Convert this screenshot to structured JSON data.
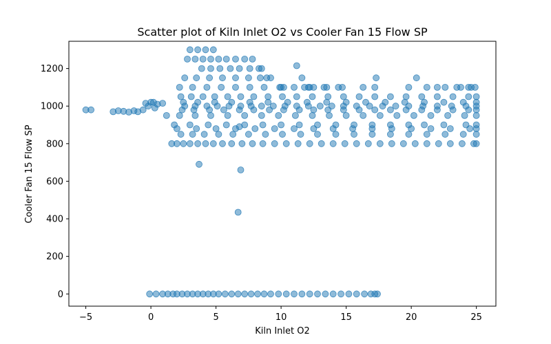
{
  "chart_data": {
    "type": "scatter",
    "title": "Scatter plot of Kiln Inlet O2 vs Cooler Fan 15 Flow SP",
    "xlabel": "Kiln Inlet O2",
    "ylabel": "Cooler Fan 15 Flow SP",
    "xlim": [
      -6.3,
      26.5
    ],
    "ylim": [
      -65,
      1345
    ],
    "xticks": [
      -5,
      0,
      5,
      10,
      15,
      20,
      25
    ],
    "yticks": [
      0,
      200,
      400,
      600,
      800,
      1000,
      1200
    ],
    "grid": false,
    "point_color": "#1f77b4",
    "point_opacity": 0.5,
    "series": [
      {
        "x": [
          -5.0,
          -4.6,
          -2.9,
          -2.5,
          -2.1,
          -1.7,
          -1.3,
          -1.0,
          -0.6,
          -0.2,
          0.2,
          0.5,
          0.9,
          -0.4,
          0.0,
          0.3,
          1.6,
          2.0,
          2.5,
          3.0,
          3.6,
          4.2,
          4.8,
          5.5,
          6.2,
          7.0,
          7.8,
          8.6,
          9.5,
          10.4,
          11.3,
          12.2,
          13.1,
          14.0,
          14.9,
          15.8,
          16.7,
          17.6,
          18.5,
          19.4,
          20.3,
          21.2,
          22.1,
          23.0,
          23.9,
          24.8,
          25.0,
          2.3,
          3.2,
          4.1,
          5.2,
          6.3,
          7.5,
          8.8,
          10.1,
          11.5,
          12.8,
          14.2,
          15.6,
          17.0,
          18.4,
          19.8,
          21.2,
          22.6,
          24.0,
          25.0,
          2.0,
          3.5,
          5.0,
          6.5,
          8.0,
          9.5,
          11.0,
          12.5,
          14.0,
          15.5,
          17.0,
          18.5,
          20.0,
          21.5,
          23.0,
          24.5,
          25.0,
          1.8,
          3.0,
          4.4,
          5.8,
          7.2,
          8.6,
          10.0,
          11.4,
          12.8,
          14.2,
          15.6,
          17.0,
          18.4,
          19.8,
          21.0,
          22.5,
          24.2,
          25.0,
          1.2,
          2.2,
          3.4,
          4.6,
          5.9,
          7.2,
          8.5,
          9.8,
          11.1,
          12.4,
          13.7,
          15.0,
          16.3,
          17.6,
          18.9,
          20.2,
          21.5,
          22.8,
          24.1,
          25.0,
          2.4,
          3.3,
          4.5,
          5.6,
          6.8,
          7.9,
          9.1,
          10.2,
          11.4,
          12.5,
          13.6,
          14.8,
          16.0,
          17.2,
          18.4,
          19.6,
          20.8,
          22.0,
          23.2,
          24.4,
          25.0,
          2.6,
          3.4,
          4.3,
          5.1,
          6.0,
          6.9,
          7.7,
          8.5,
          9.4,
          10.3,
          11.2,
          12.1,
          13.0,
          13.9,
          14.8,
          15.8,
          16.8,
          17.8,
          18.8,
          19.8,
          20.9,
          22.0,
          23.1,
          24.2,
          25.0,
          2.5,
          3.6,
          4.9,
          6.2,
          7.6,
          9.0,
          10.5,
          12.0,
          13.5,
          15.0,
          16.5,
          18.0,
          19.5,
          21.0,
          22.5,
          24.0,
          25.0,
          2.3,
          3.1,
          4.0,
          4.9,
          5.9,
          6.9,
          7.9,
          9.0,
          10.1,
          11.2,
          12.4,
          13.6,
          14.8,
          16.0,
          17.2,
          18.4,
          19.6,
          20.8,
          22.0,
          23.2,
          24.4,
          25.0,
          3.0,
          3.6,
          4.2,
          4.8,
          2.8,
          3.4,
          4.0,
          4.6,
          5.2,
          5.8,
          6.5,
          7.2,
          7.8,
          3.9,
          4.6,
          5.3,
          6.1,
          6.8,
          7.6,
          8.3,
          8.5,
          2.6,
          3.5,
          4.5,
          5.5,
          6.5,
          7.5,
          8.4,
          9.2,
          2.2,
          3.2,
          4.3,
          5.4,
          6.5,
          7.6,
          8.7,
          9.9,
          11.0,
          12.2,
          13.5,
          14.7,
          16.3,
          17.2,
          19.8,
          21.2,
          22.6,
          23.8,
          24.4,
          24.9,
          8.9,
          10.0,
          11.8,
          12.5,
          13.3,
          14.4,
          17.3,
          20.4,
          22.0,
          23.5,
          24.6,
          11.2,
          11.6,
          10.2,
          12.1,
          3.7,
          6.9,
          6.7,
          6.8,
          -0.1,
          0.4,
          0.9,
          1.3,
          1.7,
          2.0,
          2.4,
          2.8,
          3.2,
          3.6,
          4.0,
          4.4,
          4.8,
          5.2,
          5.7,
          6.2,
          6.7,
          7.2,
          7.7,
          8.2,
          8.7,
          9.2,
          9.8,
          10.4,
          11.0,
          11.6,
          12.2,
          12.8,
          13.4,
          14.0,
          14.6,
          15.2,
          15.8,
          16.4,
          16.9,
          17.2,
          17.4
        ],
        "y": [
          980,
          980,
          970,
          975,
          972,
          968,
          975,
          970,
          980,
          1000,
          1020,
          1010,
          1015,
          1015,
          1020,
          990,
          800,
          800,
          800,
          800,
          800,
          800,
          800,
          800,
          800,
          800,
          800,
          800,
          800,
          800,
          800,
          800,
          800,
          800,
          800,
          800,
          800,
          800,
          800,
          800,
          800,
          800,
          800,
          800,
          800,
          800,
          800,
          850,
          850,
          850,
          850,
          850,
          850,
          850,
          850,
          850,
          850,
          850,
          850,
          850,
          850,
          850,
          850,
          850,
          850,
          850,
          880,
          880,
          880,
          880,
          880,
          880,
          880,
          880,
          880,
          880,
          880,
          880,
          880,
          880,
          880,
          880,
          880,
          900,
          900,
          900,
          900,
          900,
          900,
          900,
          900,
          900,
          900,
          900,
          900,
          900,
          900,
          900,
          900,
          900,
          900,
          950,
          950,
          950,
          950,
          950,
          950,
          950,
          950,
          950,
          950,
          950,
          950,
          950,
          950,
          950,
          950,
          950,
          950,
          950,
          950,
          980,
          980,
          980,
          980,
          980,
          980,
          980,
          980,
          980,
          980,
          980,
          980,
          980,
          980,
          980,
          980,
          980,
          980,
          980,
          980,
          980,
          1000,
          1000,
          1000,
          1000,
          1000,
          1000,
          1000,
          1000,
          1000,
          1000,
          1000,
          1000,
          1000,
          1000,
          1000,
          1000,
          1000,
          1000,
          1000,
          1000,
          1000,
          1000,
          1000,
          1000,
          1000,
          1020,
          1020,
          1020,
          1020,
          1020,
          1020,
          1020,
          1020,
          1020,
          1020,
          1020,
          1020,
          1020,
          1020,
          1020,
          1020,
          1020,
          1050,
          1050,
          1050,
          1050,
          1050,
          1050,
          1050,
          1050,
          1050,
          1050,
          1050,
          1050,
          1050,
          1050,
          1050,
          1050,
          1050,
          1050,
          1050,
          1050,
          1050,
          1050,
          1300,
          1300,
          1300,
          1300,
          1250,
          1250,
          1250,
          1250,
          1250,
          1250,
          1250,
          1250,
          1250,
          1200,
          1200,
          1200,
          1200,
          1200,
          1200,
          1200,
          1200,
          1150,
          1150,
          1150,
          1150,
          1150,
          1150,
          1150,
          1150,
          1100,
          1100,
          1100,
          1100,
          1100,
          1100,
          1100,
          1100,
          1100,
          1100,
          1100,
          1100,
          1100,
          1100,
          1100,
          1100,
          1100,
          1100,
          1100,
          1100,
          1150,
          1100,
          1100,
          1100,
          1100,
          1100,
          1150,
          1150,
          1100,
          1100,
          1100,
          1215,
          1150,
          1100,
          1100,
          690,
          660,
          435,
          890,
          0,
          0,
          0,
          0,
          0,
          0,
          0,
          0,
          0,
          0,
          0,
          0,
          0,
          0,
          0,
          0,
          0,
          0,
          0,
          0,
          0,
          0,
          0,
          0,
          0,
          0,
          0,
          0,
          0,
          0,
          0,
          0,
          0,
          0,
          0,
          0,
          0
        ]
      }
    ]
  }
}
